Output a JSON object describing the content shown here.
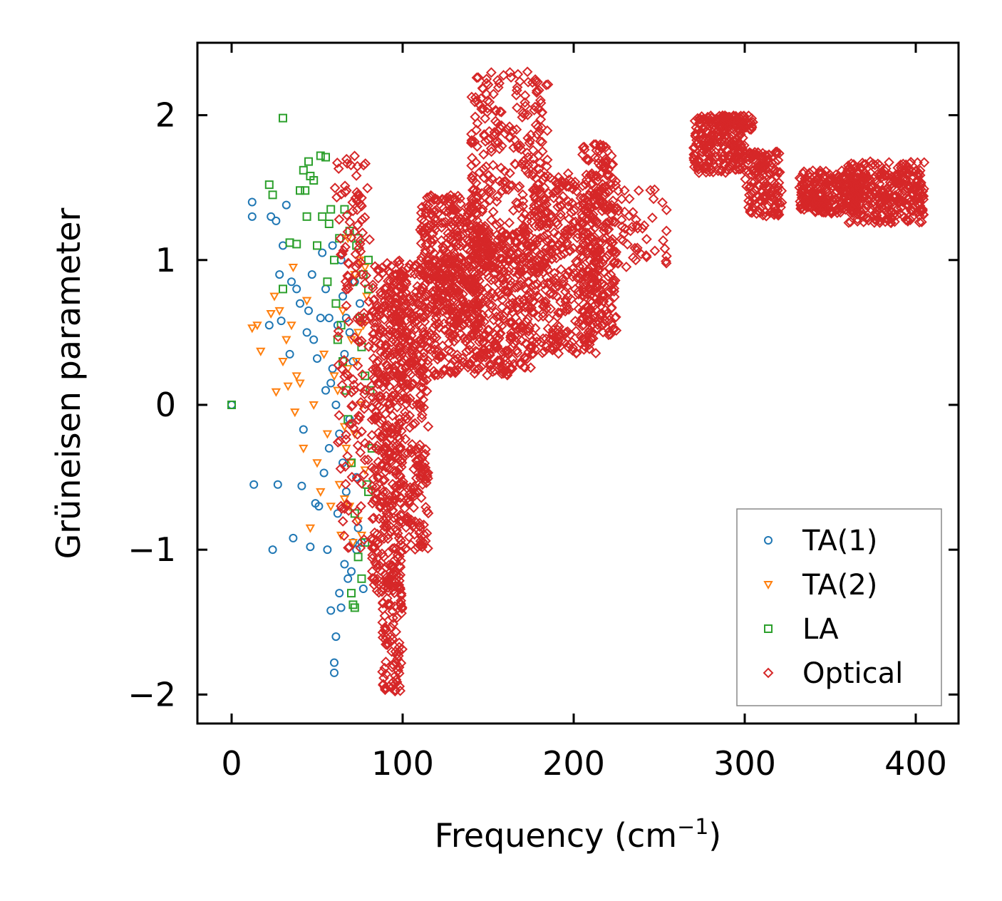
{
  "chart_data": {
    "type": "scatter",
    "title": "",
    "xlabel": "Frequency (cm",
    "xlabel_superscript": "−1",
    "xlabel_suffix": ")",
    "ylabel": "Grüneisen parameter",
    "xlim": [
      -20,
      425
    ],
    "ylim": [
      -2.2,
      2.5
    ],
    "xticks": [
      0,
      100,
      200,
      300,
      400
    ],
    "xtick_labels": [
      "0",
      "100",
      "200",
      "300",
      "400"
    ],
    "yticks": [
      -2,
      -1,
      0,
      1,
      2
    ],
    "ytick_labels": [
      "−2",
      "−1",
      "0",
      "1",
      "2"
    ],
    "grid": false,
    "legend_position": "lower-right",
    "series": [
      {
        "name": "TA(1)",
        "marker": "circle",
        "color": "#1f77b4",
        "points": [
          [
            0,
            0
          ],
          [
            12,
            1.3
          ],
          [
            12,
            1.4
          ],
          [
            13,
            -0.55
          ],
          [
            22,
            0.55
          ],
          [
            23,
            1.3
          ],
          [
            24,
            -1
          ],
          [
            26,
            1.27
          ],
          [
            27,
            -0.55
          ],
          [
            28,
            0.9
          ],
          [
            29,
            0.58
          ],
          [
            30,
            1.1
          ],
          [
            32,
            1.38
          ],
          [
            34,
            0.35
          ],
          [
            35,
            0.85
          ],
          [
            36,
            -0.92
          ],
          [
            38,
            0.8
          ],
          [
            40,
            0.7
          ],
          [
            41,
            -0.56
          ],
          [
            42,
            -0.17
          ],
          [
            44,
            0.5
          ],
          [
            45,
            0.65
          ],
          [
            46,
            -0.98
          ],
          [
            47,
            0.9
          ],
          [
            48,
            0.45
          ],
          [
            49,
            -0.68
          ],
          [
            50,
            0.32
          ],
          [
            51,
            -0.7
          ],
          [
            52,
            0.6
          ],
          [
            53,
            1.05
          ],
          [
            54,
            -0.47
          ],
          [
            55,
            0.8
          ],
          [
            56,
            -1.0
          ],
          [
            57,
            0.6
          ],
          [
            58,
            -1.42
          ],
          [
            59,
            1.1
          ],
          [
            60,
            -1.85
          ],
          [
            60,
            -1.78
          ],
          [
            61,
            -1.6
          ],
          [
            62,
            0.55
          ],
          [
            63,
            -1.3
          ],
          [
            64,
            -1.4
          ],
          [
            65,
            0.75
          ],
          [
            66,
            -1.1
          ],
          [
            67,
            0.6
          ],
          [
            68,
            -1.2
          ],
          [
            69,
            0.5
          ],
          [
            70,
            -1.15
          ],
          [
            71,
            -0.95
          ],
          [
            72,
            0.85
          ],
          [
            73,
            -1.0
          ],
          [
            74,
            -0.85
          ],
          [
            75,
            0.7
          ],
          [
            76,
            -0.95
          ],
          [
            77,
            -1.27
          ],
          [
            61,
            0.0
          ],
          [
            63,
            -0.2
          ],
          [
            65,
            -0.4
          ],
          [
            59,
            0.25
          ],
          [
            57,
            -0.3
          ],
          [
            55,
            0.1
          ],
          [
            67,
            -0.6
          ],
          [
            69,
            -0.1
          ],
          [
            71,
            0.3
          ],
          [
            73,
            -0.5
          ],
          [
            64,
            1.0
          ],
          [
            66,
            0.35
          ],
          [
            58,
            0.15
          ],
          [
            62,
            -0.75
          ]
        ]
      },
      {
        "name": "TA(2)",
        "marker": "triangle-down",
        "color": "#ff7f0e",
        "points": [
          [
            12,
            0.53
          ],
          [
            15,
            0.55
          ],
          [
            17,
            0.37
          ],
          [
            23,
            0.63
          ],
          [
            25,
            0.75
          ],
          [
            26,
            0.09
          ],
          [
            28,
            0.65
          ],
          [
            30,
            0.3
          ],
          [
            32,
            0.45
          ],
          [
            33,
            0.13
          ],
          [
            35,
            0.55
          ],
          [
            36,
            0.95
          ],
          [
            37,
            -0.05
          ],
          [
            38,
            0.2
          ],
          [
            40,
            0.15
          ],
          [
            42,
            -0.3
          ],
          [
            44,
            0.72
          ],
          [
            46,
            -0.85
          ],
          [
            48,
            0.0
          ],
          [
            50,
            -0.4
          ],
          [
            52,
            -0.6
          ],
          [
            54,
            0.35
          ],
          [
            56,
            -0.2
          ],
          [
            58,
            -0.7
          ],
          [
            60,
            0.2
          ],
          [
            62,
            0.1
          ],
          [
            63,
            -0.55
          ],
          [
            64,
            -0.9
          ],
          [
            65,
            0.65
          ],
          [
            66,
            -0.15
          ],
          [
            67,
            -0.3
          ],
          [
            68,
            1.15
          ],
          [
            69,
            -0.7
          ],
          [
            70,
            0.45
          ],
          [
            71,
            -0.95
          ],
          [
            72,
            0.9
          ],
          [
            73,
            0.3
          ],
          [
            74,
            -0.8
          ],
          [
            75,
            1.0
          ],
          [
            76,
            0.0
          ],
          [
            77,
            0.55
          ],
          [
            78,
            -0.45
          ],
          [
            79,
            0.75
          ],
          [
            72,
            -0.2
          ],
          [
            74,
            0.5
          ],
          [
            70,
            -0.4
          ],
          [
            68,
            0.25
          ],
          [
            66,
            -0.65
          ],
          [
            76,
            -0.9
          ],
          [
            78,
            0.95
          ]
        ]
      },
      {
        "name": "LA",
        "marker": "square",
        "color": "#2ca02c",
        "points": [
          [
            0,
            0
          ],
          [
            30,
            1.98
          ],
          [
            22,
            1.52
          ],
          [
            24,
            1.45
          ],
          [
            30,
            0.8
          ],
          [
            34,
            1.12
          ],
          [
            38,
            1.11
          ],
          [
            40,
            1.48
          ],
          [
            42,
            1.62
          ],
          [
            43,
            1.48
          ],
          [
            44,
            1.3
          ],
          [
            45,
            1.68
          ],
          [
            46,
            1.58
          ],
          [
            48,
            1.55
          ],
          [
            50,
            1.1
          ],
          [
            52,
            1.72
          ],
          [
            53,
            1.3
          ],
          [
            55,
            1.71
          ],
          [
            56,
            0.85
          ],
          [
            57,
            1.25
          ],
          [
            58,
            1.35
          ],
          [
            60,
            1.0
          ],
          [
            61,
            0.7
          ],
          [
            62,
            0.45
          ],
          [
            63,
            1.15
          ],
          [
            64,
            0.55
          ],
          [
            65,
            0.3
          ],
          [
            66,
            1.35
          ],
          [
            67,
            0.1
          ],
          [
            68,
            -0.1
          ],
          [
            69,
            1.2
          ],
          [
            70,
            -0.4
          ],
          [
            71,
            0.85
          ],
          [
            72,
            -0.75
          ],
          [
            73,
            1.1
          ],
          [
            74,
            -1.05
          ],
          [
            75,
            0.6
          ],
          [
            76,
            -1.2
          ],
          [
            77,
            0.9
          ],
          [
            78,
            0.2
          ],
          [
            79,
            -0.55
          ],
          [
            80,
            1.0
          ],
          [
            80,
            0.8
          ],
          [
            78,
            -0.95
          ],
          [
            76,
            0.4
          ],
          [
            74,
            1.15
          ],
          [
            72,
            -1.4
          ],
          [
            71,
            -1.38
          ],
          [
            70,
            -1.3
          ],
          [
            81,
            0.1
          ],
          [
            82,
            -0.3
          ],
          [
            80,
            -0.6
          ]
        ]
      },
      {
        "name": "Optical",
        "marker": "diamond",
        "color": "#d62728",
        "cloud_regions": [
          {
            "x": [
              58,
              80
            ],
            "y": [
              1.3,
              1.72
            ],
            "n": 30
          },
          {
            "x": [
              62,
              82
            ],
            "y": [
              -1.0,
              1.3
            ],
            "n": 120
          },
          {
            "x": [
              82,
              100
            ],
            "y": [
              -1.3,
              1.0
            ],
            "n": 420
          },
          {
            "x": [
              88,
              100
            ],
            "y": [
              -1.98,
              -1.2
            ],
            "n": 90
          },
          {
            "x": [
              100,
              115
            ],
            "y": [
              -1.0,
              0.5
            ],
            "n": 160
          },
          {
            "x": [
              95,
              140
            ],
            "y": [
              0.2,
              1.0
            ],
            "n": 320
          },
          {
            "x": [
              110,
              145
            ],
            "y": [
              0.55,
              1.45
            ],
            "n": 320
          },
          {
            "x": [
              140,
              175
            ],
            "y": [
              0.2,
              1.2
            ],
            "n": 350
          },
          {
            "x": [
              140,
              185
            ],
            "y": [
              0.9,
              2.3
            ],
            "n": 300
          },
          {
            "x": [
              175,
              215
            ],
            "y": [
              0.35,
              1.6
            ],
            "n": 380
          },
          {
            "x": [
              205,
              225
            ],
            "y": [
              0.45,
              1.8
            ],
            "n": 220
          },
          {
            "x": [
              215,
              255
            ],
            "y": [
              0.95,
              1.5
            ],
            "n": 70
          },
          {
            "x": [
              270,
              300
            ],
            "y": [
              1.6,
              2.0
            ],
            "n": 220
          },
          {
            "x": [
              285,
              305
            ],
            "y": [
              1.9,
              2.0
            ],
            "n": 60
          },
          {
            "x": [
              300,
              322
            ],
            "y": [
              1.3,
              1.75
            ],
            "n": 150
          },
          {
            "x": [
              332,
              368
            ],
            "y": [
              1.32,
              1.62
            ],
            "n": 260
          },
          {
            "x": [
              360,
              405
            ],
            "y": [
              1.25,
              1.68
            ],
            "n": 320
          }
        ]
      }
    ]
  }
}
